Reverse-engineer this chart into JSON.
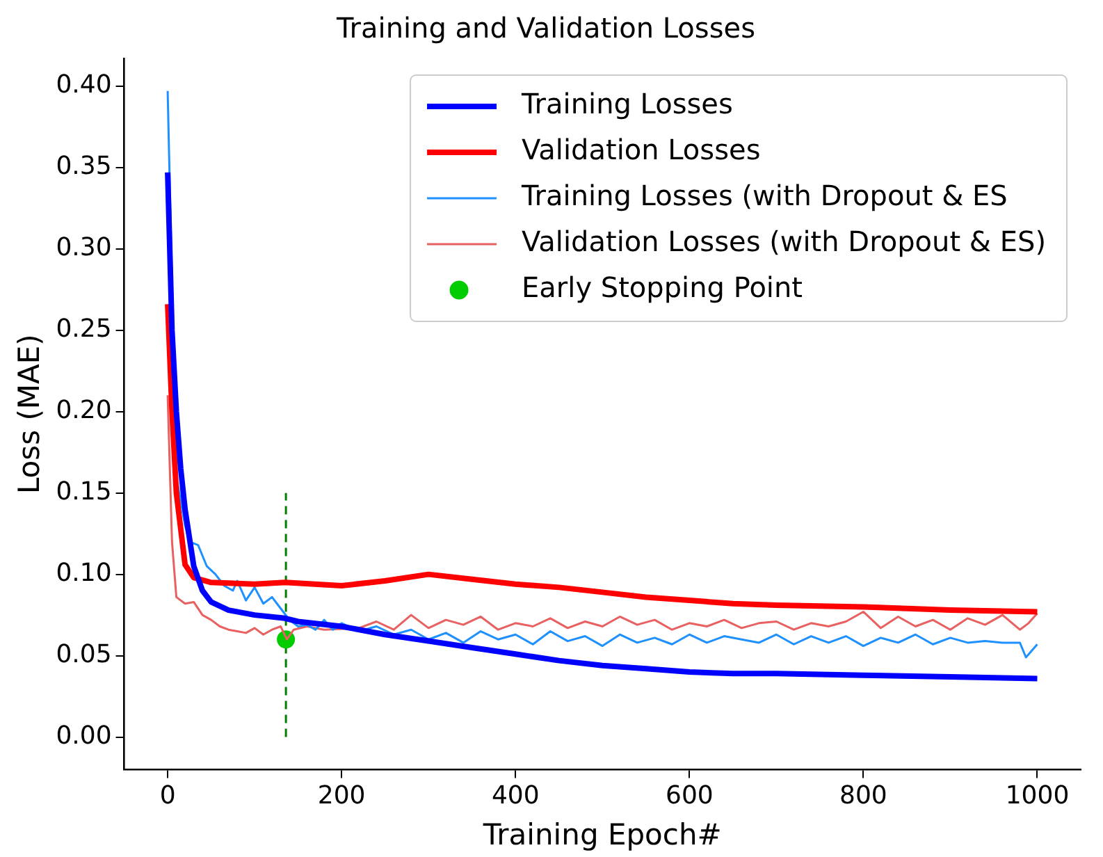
{
  "chart_data": {
    "type": "line",
    "title": "Training and Validation Losses",
    "xlabel": "Training Epoch#",
    "ylabel": "Loss (MAE)",
    "xlim": [
      -50,
      1050
    ],
    "xticks": [
      0,
      200,
      400,
      600,
      800,
      1000
    ],
    "ylim": [
      -0.02,
      0.417
    ],
    "yticks": [
      {
        "value": 0,
        "label": "0.00"
      },
      {
        "value": 0.05,
        "label": "0.05"
      },
      {
        "value": 0.1,
        "label": "0.10"
      },
      {
        "value": 0.15,
        "label": "0.15"
      },
      {
        "value": 0.2,
        "label": "0.20"
      },
      {
        "value": 0.25,
        "label": "0.25"
      },
      {
        "value": 0.3,
        "label": "0.30"
      },
      {
        "value": 0.35,
        "label": "0.35"
      },
      {
        "value": 0.4,
        "label": "0.40"
      }
    ],
    "grid": false,
    "legend": "top right",
    "marker": "none",
    "series": [
      {
        "name": "Training Losses",
        "color": "#0000ff",
        "x": [
          0,
          5,
          10,
          15,
          20,
          30,
          40,
          50,
          70,
          100,
          135,
          150,
          200,
          250,
          300,
          350,
          400,
          450,
          500,
          550,
          600,
          650,
          700,
          800,
          900,
          1000
        ],
        "values": [
          0.347,
          0.25,
          0.2,
          0.165,
          0.14,
          0.105,
          0.09,
          0.083,
          0.078,
          0.075,
          0.073,
          0.071,
          0.068,
          0.063,
          0.059,
          0.055,
          0.051,
          0.047,
          0.044,
          0.042,
          0.04,
          0.039,
          0.039,
          0.038,
          0.037,
          0.036
        ]
      },
      {
        "name": "Validation Losses",
        "color": "#ff0000",
        "x": [
          0,
          5,
          10,
          20,
          30,
          50,
          100,
          135,
          200,
          250,
          300,
          350,
          400,
          450,
          500,
          550,
          600,
          650,
          700,
          800,
          900,
          1000
        ],
        "values": [
          0.266,
          0.2,
          0.15,
          0.106,
          0.098,
          0.095,
          0.094,
          0.095,
          0.093,
          0.096,
          0.1,
          0.097,
          0.094,
          0.092,
          0.089,
          0.086,
          0.084,
          0.082,
          0.081,
          0.08,
          0.078,
          0.077
        ]
      },
      {
        "name": "Training Losses (with Dropout & ES",
        "color": "#1e90ff",
        "x": [
          0,
          5,
          10,
          20,
          25,
          35,
          45,
          55,
          65,
          75,
          80,
          90,
          100,
          110,
          120,
          130,
          140,
          150,
          160,
          170,
          180,
          190,
          200,
          220,
          240,
          260,
          280,
          300,
          320,
          340,
          360,
          380,
          400,
          420,
          440,
          460,
          480,
          500,
          520,
          540,
          560,
          580,
          600,
          620,
          640,
          660,
          680,
          700,
          720,
          740,
          760,
          780,
          800,
          820,
          840,
          860,
          880,
          900,
          920,
          940,
          960,
          980,
          987,
          1000
        ],
        "values": [
          0.397,
          null,
          0.16,
          0.13,
          0.12,
          0.118,
          0.105,
          0.1,
          0.093,
          0.09,
          0.096,
          0.084,
          0.092,
          0.082,
          0.086,
          0.079,
          0.072,
          0.068,
          0.069,
          0.066,
          0.072,
          0.066,
          0.07,
          0.065,
          0.068,
          0.063,
          0.066,
          0.06,
          0.064,
          0.058,
          0.065,
          0.06,
          0.063,
          0.057,
          0.065,
          0.059,
          0.062,
          0.056,
          0.063,
          0.058,
          0.061,
          0.057,
          0.063,
          0.058,
          0.062,
          0.06,
          0.058,
          0.063,
          0.057,
          0.062,
          0.058,
          0.062,
          0.056,
          0.061,
          0.058,
          0.063,
          0.057,
          0.061,
          0.058,
          0.059,
          0.058,
          0.058,
          0.049,
          0.057
        ]
      },
      {
        "name": "Validation Losses (with Dropout & ES)",
        "color": "#e86060",
        "x": [
          0,
          5,
          10,
          20,
          30,
          40,
          50,
          60,
          70,
          80,
          90,
          100,
          110,
          120,
          130,
          137,
          145,
          160,
          180,
          200,
          220,
          240,
          260,
          280,
          300,
          320,
          340,
          360,
          380,
          400,
          420,
          440,
          460,
          480,
          500,
          520,
          540,
          560,
          580,
          600,
          620,
          640,
          660,
          680,
          700,
          720,
          740,
          760,
          780,
          800,
          820,
          840,
          860,
          880,
          900,
          920,
          940,
          960,
          980,
          990,
          1000
        ],
        "values": [
          0.21,
          0.12,
          0.086,
          0.082,
          0.083,
          0.075,
          0.072,
          0.068,
          0.066,
          0.065,
          0.064,
          0.067,
          0.063,
          0.066,
          0.068,
          0.06,
          0.066,
          0.068,
          0.066,
          null,
          0.067,
          0.071,
          0.066,
          0.075,
          0.067,
          0.072,
          0.069,
          0.074,
          0.066,
          0.07,
          0.068,
          0.073,
          0.067,
          0.071,
          0.068,
          0.074,
          0.069,
          0.072,
          0.066,
          0.07,
          0.068,
          0.072,
          0.067,
          0.07,
          0.071,
          0.066,
          0.07,
          0.068,
          0.071,
          0.077,
          0.067,
          0.074,
          0.068,
          0.072,
          0.066,
          0.073,
          0.069,
          0.075,
          0.066,
          0.07,
          0.076
        ]
      },
      {
        "name": "Early Stopping Point",
        "type": "scatter",
        "color": "#00cc00",
        "marker": "circle",
        "x": [
          136
        ],
        "values": [
          0.06
        ]
      },
      {
        "type": "line",
        "color": "#008000",
        "line_style": "dashed",
        "x": [
          136,
          136
        ],
        "values": [
          0,
          0.15
        ]
      }
    ]
  }
}
